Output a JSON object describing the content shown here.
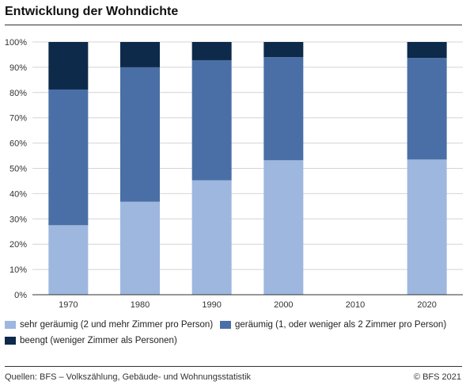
{
  "title": "Entwicklung der Wohndichte",
  "source": "Quellen: BFS – Volkszählung, Gebäude- und Wohnungsstatistik",
  "copyright": "© BFS 2021",
  "colors": {
    "sehr_geraeumig": "#9db7df",
    "geraeumig": "#4a6fa6",
    "beengt": "#0d2a4a",
    "grid": "#d4d4d4",
    "axis": "#333333"
  },
  "chart_data": {
    "type": "bar",
    "stacked": true,
    "categories": [
      "1970",
      "1980",
      "1990",
      "2000",
      "2010",
      "2020"
    ],
    "series": [
      {
        "name": "sehr geräumig (2 und mehr Zimmer pro Person)",
        "color": "#9db7df",
        "values": [
          27.5,
          36.8,
          45.3,
          53.2,
          null,
          53.5
        ]
      },
      {
        "name": "geräumig (1, oder weniger als 2 Zimmer pro Person)",
        "color": "#4a6fa6",
        "values": [
          53.7,
          53.2,
          47.5,
          40.8,
          null,
          40.2
        ]
      },
      {
        "name": "beengt (weniger Zimmer als Personen)",
        "color": "#0d2a4a",
        "values": [
          18.8,
          10.0,
          7.2,
          6.0,
          null,
          6.3
        ]
      }
    ],
    "yticks": [
      "0%",
      "10%",
      "20%",
      "30%",
      "40%",
      "50%",
      "60%",
      "70%",
      "80%",
      "90%",
      "100%"
    ],
    "ylim": [
      0,
      100
    ],
    "grid": true,
    "legend_position": "bottom"
  }
}
